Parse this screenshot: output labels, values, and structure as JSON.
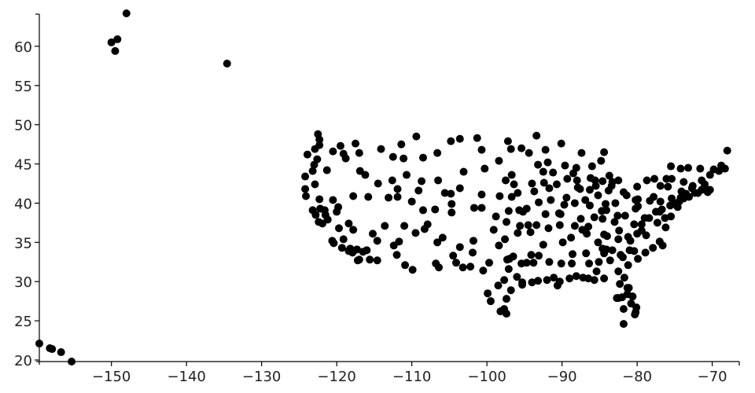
{
  "chart_data": {
    "type": "scatter",
    "title": "",
    "xlabel": "",
    "ylabel": "",
    "xlim": [
      -159.6,
      -66.4
    ],
    "ylim": [
      19.8,
      64.1
    ],
    "xticks": [
      -150,
      -140,
      -130,
      -120,
      -110,
      -100,
      -90,
      -80,
      -70
    ],
    "yticks": [
      20,
      25,
      30,
      35,
      40,
      45,
      50,
      55,
      60
    ],
    "xtick_labels": [
      "−150",
      "−140",
      "−130",
      "−120",
      "−110",
      "−100",
      "−90",
      "−80",
      "−70"
    ],
    "ytick_labels": [
      "20",
      "25",
      "30",
      "35",
      "40",
      "45",
      "50",
      "55",
      "60"
    ],
    "grid": false,
    "marker_color": "#000000",
    "points": [
      [
        -148.0,
        64.2
      ],
      [
        -150.0,
        60.5
      ],
      [
        -149.2,
        60.9
      ],
      [
        -149.5,
        59.4
      ],
      [
        -134.6,
        57.8
      ],
      [
        -159.6,
        22.1
      ],
      [
        -158.2,
        21.5
      ],
      [
        -157.9,
        21.4
      ],
      [
        -156.7,
        21.0
      ],
      [
        -155.3,
        19.8
      ],
      [
        -124.2,
        41.8
      ],
      [
        -124.1,
        40.9
      ],
      [
        -124.2,
        43.4
      ],
      [
        -123.9,
        46.2
      ],
      [
        -122.3,
        47.4
      ],
      [
        -122.5,
        48.8
      ],
      [
        -122.3,
        48.1
      ],
      [
        -123.0,
        44.9
      ],
      [
        -122.6,
        45.6
      ],
      [
        -123.2,
        44.1
      ],
      [
        -122.9,
        42.4
      ],
      [
        -122.3,
        40.5
      ],
      [
        -121.6,
        39.1
      ],
      [
        -121.5,
        38.5
      ],
      [
        -122.4,
        37.6
      ],
      [
        -121.9,
        37.4
      ],
      [
        -121.2,
        37.9
      ],
      [
        -120.6,
        35.2
      ],
      [
        -119.7,
        36.8
      ],
      [
        -119.1,
        35.4
      ],
      [
        -118.4,
        33.9
      ],
      [
        -118.2,
        34.2
      ],
      [
        -117.9,
        33.7
      ],
      [
        -117.2,
        32.7
      ],
      [
        -117.3,
        34.1
      ],
      [
        -116.5,
        33.8
      ],
      [
        -115.6,
        32.8
      ],
      [
        -117.8,
        36.6
      ],
      [
        -118.4,
        37.4
      ],
      [
        -119.8,
        39.5
      ],
      [
        -120.0,
        38.9
      ],
      [
        -117.8,
        40.9
      ],
      [
        -115.8,
        40.8
      ],
      [
        -115.2,
        36.1
      ],
      [
        -114.6,
        35.2
      ],
      [
        -114.6,
        32.7
      ],
      [
        -112.0,
        33.4
      ],
      [
        -110.9,
        32.1
      ],
      [
        -111.7,
        35.1
      ],
      [
        -109.9,
        31.5
      ],
      [
        -112.4,
        34.6
      ],
      [
        -113.6,
        37.1
      ],
      [
        -111.9,
        40.8
      ],
      [
        -111.9,
        41.8
      ],
      [
        -112.6,
        42.9
      ],
      [
        -114.5,
        42.5
      ],
      [
        -116.2,
        43.6
      ],
      [
        -117.0,
        46.4
      ],
      [
        -117.5,
        47.6
      ],
      [
        -119.5,
        47.3
      ],
      [
        -120.5,
        46.6
      ],
      [
        -119.1,
        46.3
      ],
      [
        -118.8,
        45.7
      ],
      [
        -116.9,
        44.1
      ],
      [
        -114.1,
        46.9
      ],
      [
        -112.5,
        45.9
      ],
      [
        -111.4,
        47.5
      ],
      [
        -108.5,
        45.8
      ],
      [
        -106.6,
        46.4
      ],
      [
        -104.8,
        47.9
      ],
      [
        -109.4,
        48.5
      ],
      [
        -111.1,
        45.7
      ],
      [
        -110.7,
        43.6
      ],
      [
        -106.5,
        42.9
      ],
      [
        -104.8,
        41.2
      ],
      [
        -105.6,
        41.3
      ],
      [
        -108.7,
        42.8
      ],
      [
        -109.1,
        41.6
      ],
      [
        -104.7,
        39.9
      ],
      [
        -104.7,
        38.8
      ],
      [
        -106.9,
        39.2
      ],
      [
        -108.5,
        39.1
      ],
      [
        -107.9,
        37.3
      ],
      [
        -106.6,
        35.0
      ],
      [
        -105.9,
        35.6
      ],
      [
        -103.6,
        34.4
      ],
      [
        -106.8,
        32.3
      ],
      [
        -104.5,
        33.3
      ],
      [
        -106.4,
        31.8
      ],
      [
        -103.2,
        31.8
      ],
      [
        -102.2,
        31.9
      ],
      [
        -101.8,
        35.2
      ],
      [
        -101.9,
        33.7
      ],
      [
        -100.5,
        31.4
      ],
      [
        -99.7,
        32.4
      ],
      [
        -98.5,
        29.5
      ],
      [
        -97.7,
        30.2
      ],
      [
        -97.0,
        32.9
      ],
      [
        -97.3,
        32.8
      ],
      [
        -95.3,
        29.9
      ],
      [
        -95.3,
        29.6
      ],
      [
        -94.0,
        29.9
      ],
      [
        -97.4,
        27.8
      ],
      [
        -97.4,
        25.9
      ],
      [
        -98.2,
        26.2
      ],
      [
        -99.5,
        27.5
      ],
      [
        -96.5,
        33.2
      ],
      [
        -94.7,
        32.4
      ],
      [
        -97.6,
        35.4
      ],
      [
        -95.9,
        36.2
      ],
      [
        -98.4,
        34.6
      ],
      [
        -99.1,
        36.6
      ],
      [
        -97.4,
        37.6
      ],
      [
        -95.6,
        37.1
      ],
      [
        -94.7,
        39.3
      ],
      [
        -95.7,
        39.1
      ],
      [
        -98.8,
        38.3
      ],
      [
        -100.7,
        39.4
      ],
      [
        -101.7,
        39.4
      ],
      [
        -96.7,
        40.8
      ],
      [
        -95.9,
        41.3
      ],
      [
        -98.3,
        40.9
      ],
      [
        -100.7,
        41.1
      ],
      [
        -103.6,
        41.9
      ],
      [
        -103.1,
        44.0
      ],
      [
        -100.3,
        44.4
      ],
      [
        -98.4,
        45.4
      ],
      [
        -96.7,
        43.6
      ],
      [
        -96.8,
        46.9
      ],
      [
        -100.7,
        46.8
      ],
      [
        -101.3,
        48.3
      ],
      [
        -103.6,
        48.2
      ],
      [
        -97.2,
        47.9
      ],
      [
        -94.4,
        46.4
      ],
      [
        -93.2,
        44.9
      ],
      [
        -92.5,
        44.0
      ],
      [
        -92.2,
        46.8
      ],
      [
        -93.4,
        48.6
      ],
      [
        -95.4,
        47.0
      ],
      [
        -91.2,
        43.9
      ],
      [
        -89.3,
        43.1
      ],
      [
        -88.0,
        42.9
      ],
      [
        -88.1,
        44.5
      ],
      [
        -89.6,
        44.8
      ],
      [
        -87.6,
        41.8
      ],
      [
        -87.9,
        42.0
      ],
      [
        -89.4,
        40.7
      ],
      [
        -88.3,
        40.0
      ],
      [
        -89.7,
        39.8
      ],
      [
        -90.4,
        38.7
      ],
      [
        -90.2,
        38.6
      ],
      [
        -91.7,
        41.9
      ],
      [
        -93.7,
        41.5
      ],
      [
        -92.4,
        42.6
      ],
      [
        -90.7,
        42.4
      ],
      [
        -96.4,
        42.4
      ],
      [
        -94.0,
        42.5
      ],
      [
        -92.2,
        38.6
      ],
      [
        -93.4,
        37.2
      ],
      [
        -94.5,
        37.2
      ],
      [
        -92.5,
        34.7
      ],
      [
        -94.2,
        36.3
      ],
      [
        -93.1,
        33.3
      ],
      [
        -91.7,
        32.5
      ],
      [
        -93.8,
        32.4
      ],
      [
        -92.0,
        30.2
      ],
      [
        -93.2,
        30.1
      ],
      [
        -91.1,
        30.5
      ],
      [
        -90.3,
        30.0
      ],
      [
        -89.0,
        30.4
      ],
      [
        -90.1,
        32.3
      ],
      [
        -88.7,
        32.3
      ],
      [
        -88.6,
        33.5
      ],
      [
        -89.9,
        35.0
      ],
      [
        -88.8,
        35.6
      ],
      [
        -86.7,
        36.1
      ],
      [
        -85.2,
        35.0
      ],
      [
        -84.0,
        35.8
      ],
      [
        -82.4,
        36.5
      ],
      [
        -86.8,
        33.6
      ],
      [
        -86.4,
        32.3
      ],
      [
        -85.4,
        31.3
      ],
      [
        -88.1,
        30.7
      ],
      [
        -87.2,
        30.5
      ],
      [
        -86.5,
        30.4
      ],
      [
        -84.4,
        30.4
      ],
      [
        -85.7,
        30.2
      ],
      [
        -84.4,
        33.6
      ],
      [
        -83.6,
        32.7
      ],
      [
        -81.2,
        32.1
      ],
      [
        -82.5,
        31.3
      ],
      [
        -81.7,
        30.5
      ],
      [
        -81.3,
        29.2
      ],
      [
        -81.1,
        29.2
      ],
      [
        -81.3,
        28.4
      ],
      [
        -80.6,
        28.1
      ],
      [
        -82.5,
        27.9
      ],
      [
        -82.7,
        27.9
      ],
      [
        -81.8,
        26.5
      ],
      [
        -80.1,
        26.7
      ],
      [
        -80.2,
        26.1
      ],
      [
        -80.3,
        25.8
      ],
      [
        -81.8,
        24.6
      ],
      [
        -82.3,
        29.7
      ],
      [
        -82.0,
        28.0
      ],
      [
        -81.0,
        34.0
      ],
      [
        -79.9,
        32.9
      ],
      [
        -78.9,
        33.7
      ],
      [
        -80.9,
        35.2
      ],
      [
        -82.5,
        35.4
      ],
      [
        -80.0,
        36.1
      ],
      [
        -78.8,
        35.9
      ],
      [
        -77.9,
        34.3
      ],
      [
        -76.6,
        34.6
      ],
      [
        -77.0,
        35.1
      ],
      [
        -80.4,
        37.3
      ],
      [
        -79.0,
        38.1
      ],
      [
        -77.3,
        37.5
      ],
      [
        -76.2,
        36.9
      ],
      [
        -77.0,
        38.9
      ],
      [
        -77.5,
        38.9
      ],
      [
        -76.7,
        39.2
      ],
      [
        -75.6,
        39.7
      ],
      [
        -74.6,
        39.5
      ],
      [
        -75.2,
        39.9
      ],
      [
        -74.2,
        40.7
      ],
      [
        -73.8,
        40.6
      ],
      [
        -73.9,
        40.8
      ],
      [
        -73.1,
        40.8
      ],
      [
        -72.7,
        41.9
      ],
      [
        -71.4,
        41.7
      ],
      [
        -71.0,
        42.4
      ],
      [
        -70.3,
        41.7
      ],
      [
        -70.6,
        41.4
      ],
      [
        -71.4,
        42.9
      ],
      [
        -72.6,
        42.2
      ],
      [
        -73.8,
        42.7
      ],
      [
        -76.1,
        43.1
      ],
      [
        -77.7,
        43.1
      ],
      [
        -78.7,
        42.9
      ],
      [
        -75.4,
        43.1
      ],
      [
        -73.2,
        44.5
      ],
      [
        -71.6,
        44.4
      ],
      [
        -70.3,
        43.6
      ],
      [
        -69.8,
        44.3
      ],
      [
        -68.8,
        44.8
      ],
      [
        -68.0,
        46.7
      ],
      [
        -68.3,
        44.4
      ],
      [
        -69.1,
        44.1
      ],
      [
        -74.2,
        44.4
      ],
      [
        -75.5,
        44.7
      ],
      [
        -76.9,
        42.2
      ],
      [
        -75.9,
        42.1
      ],
      [
        -77.8,
        40.8
      ],
      [
        -78.3,
        40.3
      ],
      [
        -79.9,
        40.5
      ],
      [
        -80.2,
        40.4
      ],
      [
        -76.9,
        40.2
      ],
      [
        -75.4,
        40.6
      ],
      [
        -80.0,
        42.1
      ],
      [
        -81.8,
        41.4
      ],
      [
        -81.4,
        41.0
      ],
      [
        -83.8,
        41.6
      ],
      [
        -82.9,
        40.0
      ],
      [
        -84.2,
        39.9
      ],
      [
        -84.7,
        39.0
      ],
      [
        -84.6,
        38.0
      ],
      [
        -85.7,
        38.2
      ],
      [
        -86.3,
        39.7
      ],
      [
        -86.9,
        40.4
      ],
      [
        -85.2,
        41.0
      ],
      [
        -86.3,
        41.7
      ],
      [
        -87.5,
        38.0
      ],
      [
        -83.4,
        42.2
      ],
      [
        -83.3,
        42.7
      ],
      [
        -84.6,
        42.8
      ],
      [
        -85.5,
        42.2
      ],
      [
        -85.6,
        42.9
      ],
      [
        -83.7,
        43.5
      ],
      [
        -84.8,
        45.4
      ],
      [
        -86.2,
        43.2
      ],
      [
        -87.4,
        46.4
      ],
      [
        -86.0,
        44.7
      ],
      [
        -82.5,
        42.9
      ],
      [
        -82.6,
        38.4
      ],
      [
        -81.6,
        38.4
      ],
      [
        -80.2,
        39.3
      ],
      [
        -79.9,
        39.6
      ],
      [
        -84.1,
        39.1
      ],
      [
        -83.0,
        37.6
      ],
      [
        -86.5,
        37.0
      ],
      [
        -88.3,
        37.1
      ],
      [
        -84.4,
        36.0
      ],
      [
        -87.3,
        36.6
      ],
      [
        -84.1,
        34.1
      ],
      [
        -85.1,
        32.5
      ],
      [
        -84.6,
        34.2
      ],
      [
        -82.2,
        33.4
      ],
      [
        -83.3,
        34.0
      ],
      [
        -81.2,
        35.7
      ],
      [
        -79.4,
        36.5
      ],
      [
        -78.4,
        38.1
      ],
      [
        -79.4,
        37.3
      ],
      [
        -76.3,
        38.1
      ],
      [
        -75.5,
        38.3
      ],
      [
        -75.0,
        39.9
      ],
      [
        -74.4,
        40.2
      ],
      [
        -71.0,
        41.8
      ],
      [
        -72.3,
        41.3
      ],
      [
        -73.5,
        41.2
      ],
      [
        -74.1,
        41.5
      ],
      [
        -71.9,
        41.3
      ],
      [
        -121.3,
        44.2
      ],
      [
        -122.9,
        46.9
      ],
      [
        -117.0,
        32.8
      ],
      [
        -116.0,
        34.0
      ],
      [
        -120.4,
        34.9
      ],
      [
        -119.3,
        34.3
      ],
      [
        -122.8,
        38.5
      ],
      [
        -122.2,
        39.3
      ],
      [
        -120.5,
        40.4
      ],
      [
        -123.2,
        39.1
      ],
      [
        -110.0,
        40.2
      ],
      [
        -113.1,
        40.7
      ],
      [
        -111.0,
        37.1
      ],
      [
        -109.5,
        36.2
      ],
      [
        -108.3,
        36.7
      ],
      [
        -104.1,
        32.4
      ],
      [
        -96.0,
        30.6
      ],
      [
        -97.1,
        31.6
      ],
      [
        -95.4,
        32.3
      ],
      [
        -94.1,
        33.4
      ],
      [
        -99.9,
        28.5
      ],
      [
        -97.7,
        26.5
      ],
      [
        -96.8,
        28.9
      ],
      [
        -90.6,
        29.5
      ],
      [
        -93.1,
        40.1
      ],
      [
        -91.5,
        40.4
      ],
      [
        -91.8,
        36.8
      ],
      [
        -90.3,
        37.2
      ],
      [
        -97.1,
        39.0
      ],
      [
        -95.2,
        38.9
      ],
      [
        -97.5,
        42.9
      ],
      [
        -91.9,
        45.2
      ],
      [
        -90.1,
        47.6
      ],
      [
        -88.5,
        43.8
      ],
      [
        -84.4,
        46.5
      ],
      [
        -80.8,
        27.2
      ],
      [
        -81.9,
        33.1
      ],
      [
        -80.4,
        33.9
      ]
    ]
  }
}
